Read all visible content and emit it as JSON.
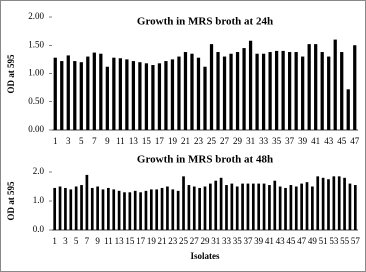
{
  "chart_data": [
    {
      "type": "bar",
      "title": "Growth in MRS broth at 24h",
      "y_label": "OD at 595",
      "color": "#000000",
      "categories": [
        "1",
        null,
        "3",
        null,
        "5",
        null,
        "7",
        null,
        "9",
        null,
        "11",
        null,
        "13",
        null,
        "15",
        null,
        "17",
        null,
        "19",
        null,
        "21",
        null,
        "23",
        null,
        "25",
        null,
        "27",
        null,
        "29",
        null,
        "31",
        null,
        "33",
        null,
        "35",
        null,
        "37",
        null,
        "39",
        null,
        "41",
        null,
        "43",
        null,
        "45",
        null,
        "47"
      ],
      "values": [
        1.28,
        1.22,
        1.32,
        1.22,
        1.2,
        1.3,
        1.37,
        1.35,
        1.12,
        1.28,
        1.27,
        1.25,
        1.22,
        1.2,
        1.18,
        1.15,
        1.18,
        1.22,
        1.25,
        1.3,
        1.38,
        1.35,
        1.28,
        1.12,
        1.52,
        1.38,
        1.3,
        1.35,
        1.38,
        1.45,
        1.58,
        1.35,
        1.35,
        1.38,
        1.4,
        1.4,
        1.38,
        1.38,
        1.3,
        1.52,
        1.52,
        1.38,
        1.3,
        1.6,
        1.38,
        0.72,
        1.5
      ],
      "ylim": [
        0,
        2
      ],
      "yticks": [
        {
          "value": 0,
          "label": "0.00"
        },
        {
          "value": 0.5,
          "label": "0.50"
        },
        {
          "value": 1,
          "label": "1.00"
        },
        {
          "value": 1.5,
          "label": "1.50"
        },
        {
          "value": 2,
          "label": "2.00"
        }
      ]
    },
    {
      "type": "bar",
      "title": "Growth in MRS broth at 48h",
      "y_label": "OD at 595",
      "x_label": "Isolates",
      "color": "#000000",
      "categories": [
        "1",
        null,
        "3",
        null,
        "5",
        null,
        "7",
        null,
        "9",
        null,
        "11",
        null,
        "13",
        null,
        "15",
        null,
        "17",
        null,
        "19",
        null,
        "21",
        null,
        "23",
        null,
        "25",
        null,
        "27",
        null,
        "29",
        null,
        "31",
        null,
        "33",
        null,
        "35",
        null,
        "37",
        null,
        "39",
        null,
        "41",
        null,
        "43",
        null,
        "45",
        null,
        "47",
        null,
        "49",
        null,
        "51",
        null,
        "53",
        null,
        "55",
        null,
        "57"
      ],
      "values": [
        1.45,
        1.5,
        1.45,
        1.4,
        1.5,
        1.55,
        1.9,
        1.45,
        1.5,
        1.4,
        1.45,
        1.4,
        1.35,
        1.3,
        1.3,
        1.35,
        1.3,
        1.35,
        1.4,
        1.4,
        1.45,
        1.5,
        1.4,
        1.35,
        1.85,
        1.55,
        1.5,
        1.45,
        1.5,
        1.6,
        1.7,
        1.8,
        1.55,
        1.6,
        1.5,
        1.6,
        1.6,
        1.6,
        1.6,
        1.6,
        1.55,
        1.7,
        1.5,
        1.45,
        1.55,
        1.5,
        1.6,
        1.65,
        1.5,
        1.85,
        1.8,
        1.75,
        1.85,
        1.85,
        1.8,
        1.6,
        1.55
      ],
      "ylim": [
        0,
        2
      ],
      "yticks": [
        {
          "value": 0,
          "label": "0.0"
        },
        {
          "value": 1,
          "label": "1.0"
        },
        {
          "value": 2,
          "label": "2.0"
        }
      ]
    }
  ]
}
